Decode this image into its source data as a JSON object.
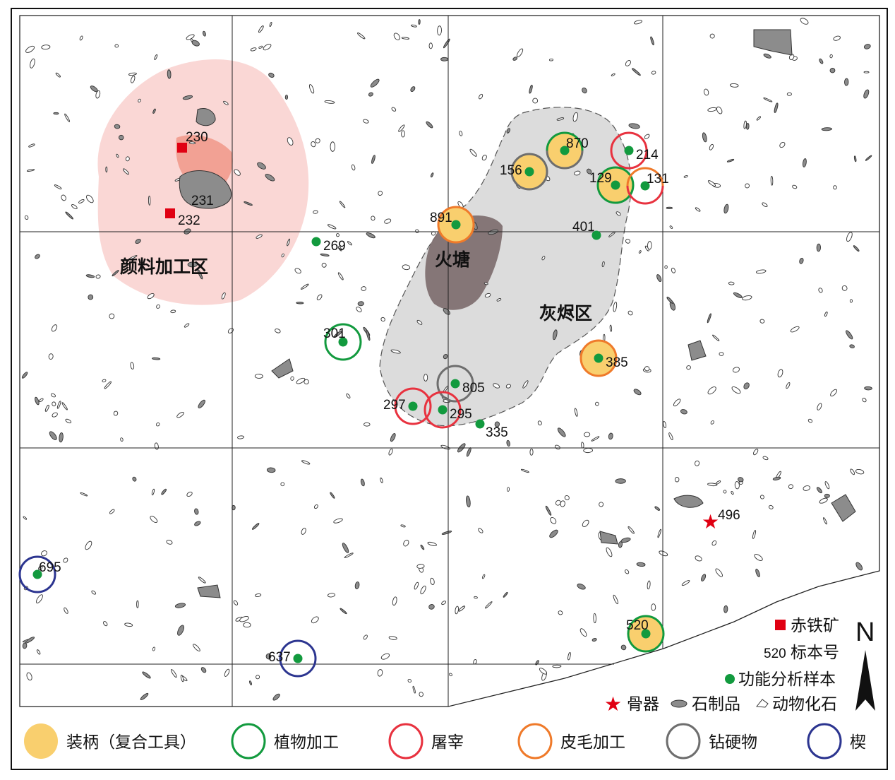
{
  "zones": {
    "pigment": "颜料加工区",
    "hearth": "火塘",
    "ash": "灰烬区"
  },
  "colors": {
    "hafting_fill": "#f9cf6e",
    "plant": "#129a3e",
    "butchery": "#e8323f",
    "hide": "#ef7a2a",
    "drilling": "#6e6e6e",
    "wedge": "#2c3590",
    "sample_dot": "#129a3e",
    "hematite": "#e00012",
    "pigment_zone": "#f9d3d0",
    "ash_zone": "#dcdcdc",
    "hearth": "#7b6a6c"
  },
  "stone_labels": [
    "231"
  ],
  "hematite_samples": [
    "230",
    "232"
  ],
  "bone_tool": "496",
  "samples": [
    {
      "id": "269",
      "hafted": false,
      "uses": []
    },
    {
      "id": "301",
      "hafted": false,
      "uses": [
        "plant"
      ]
    },
    {
      "id": "870",
      "hafted": true,
      "uses": [
        "plant",
        "drilling"
      ]
    },
    {
      "id": "156",
      "hafted": true,
      "uses": [
        "drilling"
      ]
    },
    {
      "id": "214",
      "hafted": false,
      "uses": [
        "butchery"
      ]
    },
    {
      "id": "129",
      "hafted": true,
      "uses": [
        "plant"
      ]
    },
    {
      "id": "131",
      "hafted": false,
      "uses": [
        "hide",
        "butchery"
      ]
    },
    {
      "id": "891",
      "hafted": true,
      "uses": [
        "hide"
      ]
    },
    {
      "id": "401",
      "hafted": false,
      "uses": []
    },
    {
      "id": "385",
      "hafted": true,
      "uses": [
        "hide"
      ]
    },
    {
      "id": "805",
      "hafted": false,
      "uses": [
        "drilling"
      ]
    },
    {
      "id": "297",
      "hafted": false,
      "uses": [
        "butchery"
      ]
    },
    {
      "id": "295",
      "hafted": false,
      "uses": [
        "butchery"
      ]
    },
    {
      "id": "335",
      "hafted": false,
      "uses": []
    },
    {
      "id": "695",
      "hafted": false,
      "uses": [
        "wedge"
      ]
    },
    {
      "id": "637",
      "hafted": false,
      "uses": [
        "wedge"
      ]
    },
    {
      "id": "520",
      "hafted": true,
      "uses": [
        "plant"
      ]
    }
  ],
  "key": {
    "hematite": "赤铁矿",
    "specimen_number_example": "520",
    "specimen_number": "标本号",
    "functional_sample": "功能分析样本",
    "bone_tool": "骨器",
    "stone_artifact": "石制品",
    "animal_fossil": "动物化石",
    "north": "N"
  },
  "legend": [
    {
      "key": "hafting",
      "label": "装柄（复合工具）"
    },
    {
      "key": "plant",
      "label": "植物加工"
    },
    {
      "key": "butchery",
      "label": "屠宰"
    },
    {
      "key": "hide",
      "label": "皮毛加工"
    },
    {
      "key": "drilling",
      "label": "钻硬物"
    },
    {
      "key": "wedge",
      "label": "楔"
    }
  ]
}
